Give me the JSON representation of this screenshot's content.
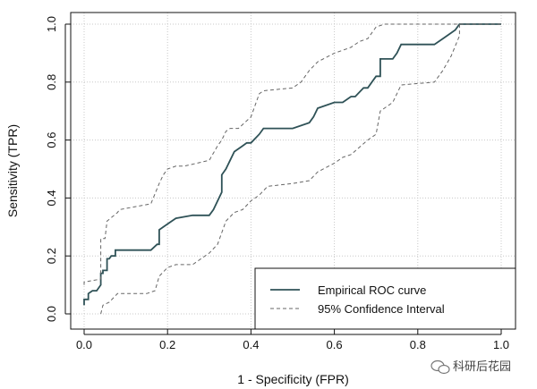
{
  "chart_data": {
    "type": "line",
    "xlabel": "1 - Specificity (FPR)",
    "ylabel": "Sensitivity (TPR)",
    "xlim": [
      0,
      1
    ],
    "ylim": [
      0,
      1
    ],
    "x_ticks": [
      "0.0",
      "0.2",
      "0.4",
      "0.6",
      "0.8",
      "1.0"
    ],
    "y_ticks": [
      "0.0",
      "0.2",
      "0.4",
      "0.6",
      "0.8",
      "1.0"
    ],
    "grid": true,
    "legend_position": "bottom-right",
    "series": [
      {
        "name": "Empirical ROC curve",
        "style": "solid",
        "color": "#2f5257",
        "x": [
          0.0,
          0.0,
          0.01,
          0.01,
          0.02,
          0.03,
          0.04,
          0.04,
          0.045,
          0.045,
          0.055,
          0.055,
          0.06,
          0.065,
          0.075,
          0.075,
          0.16,
          0.175,
          0.18,
          0.18,
          0.19,
          0.21,
          0.22,
          0.26,
          0.3,
          0.31,
          0.33,
          0.33,
          0.34,
          0.35,
          0.36,
          0.38,
          0.39,
          0.4,
          0.42,
          0.43,
          0.5,
          0.54,
          0.55,
          0.56,
          0.6,
          0.62,
          0.64,
          0.65,
          0.67,
          0.68,
          0.69,
          0.7,
          0.71,
          0.71,
          0.74,
          0.75,
          0.76,
          0.8,
          0.84,
          0.86,
          0.88,
          0.89,
          0.9,
          1.0
        ],
        "y": [
          0.03,
          0.05,
          0.05,
          0.07,
          0.08,
          0.08,
          0.1,
          0.14,
          0.14,
          0.15,
          0.15,
          0.19,
          0.19,
          0.2,
          0.2,
          0.22,
          0.22,
          0.24,
          0.24,
          0.29,
          0.3,
          0.32,
          0.33,
          0.34,
          0.34,
          0.36,
          0.42,
          0.48,
          0.5,
          0.53,
          0.56,
          0.58,
          0.59,
          0.59,
          0.62,
          0.64,
          0.64,
          0.66,
          0.68,
          0.71,
          0.73,
          0.73,
          0.75,
          0.75,
          0.78,
          0.78,
          0.8,
          0.82,
          0.82,
          0.88,
          0.88,
          0.9,
          0.93,
          0.93,
          0.93,
          0.95,
          0.97,
          0.98,
          1.0,
          1.0
        ]
      },
      {
        "name": "95% Confidence Interval",
        "style": "dashed",
        "color": "#666666",
        "x": [
          0.0,
          0.0,
          0.04,
          0.04,
          0.05,
          0.055,
          0.08,
          0.085,
          0.16,
          0.18,
          0.19,
          0.2,
          0.22,
          0.24,
          0.3,
          0.32,
          0.33,
          0.34,
          0.35,
          0.37,
          0.4,
          0.42,
          0.43,
          0.5,
          0.52,
          0.54,
          0.56,
          0.6,
          0.62,
          0.64,
          0.66,
          0.68,
          0.69,
          0.7,
          0.72,
          0.74,
          0.8,
          0.84,
          0.86,
          0.88,
          0.9,
          0.9,
          1.0
        ],
        "y": [
          0.1,
          0.11,
          0.12,
          0.26,
          0.26,
          0.32,
          0.35,
          0.36,
          0.38,
          0.45,
          0.48,
          0.5,
          0.51,
          0.51,
          0.53,
          0.58,
          0.6,
          0.63,
          0.64,
          0.64,
          0.68,
          0.76,
          0.77,
          0.78,
          0.8,
          0.84,
          0.87,
          0.9,
          0.91,
          0.92,
          0.94,
          0.95,
          0.97,
          0.99,
          1.0,
          1.0,
          1.0,
          1.0,
          1.0,
          1.0,
          1.0,
          1.0,
          1.0
        ]
      },
      {
        "name": "95% Confidence Interval",
        "style": "dashed",
        "color": "#666666",
        "x": [
          0.04,
          0.045,
          0.06,
          0.08,
          0.12,
          0.15,
          0.17,
          0.18,
          0.2,
          0.22,
          0.26,
          0.3,
          0.32,
          0.34,
          0.36,
          0.38,
          0.4,
          0.42,
          0.44,
          0.5,
          0.54,
          0.56,
          0.6,
          0.62,
          0.64,
          0.68,
          0.7,
          0.71,
          0.72,
          0.74,
          0.75,
          0.76,
          0.84,
          0.86,
          0.88,
          0.9,
          0.9
        ],
        "y": [
          0.0,
          0.03,
          0.04,
          0.07,
          0.07,
          0.07,
          0.08,
          0.13,
          0.16,
          0.17,
          0.17,
          0.21,
          0.24,
          0.32,
          0.35,
          0.36,
          0.39,
          0.41,
          0.44,
          0.45,
          0.46,
          0.49,
          0.52,
          0.54,
          0.55,
          0.6,
          0.62,
          0.7,
          0.71,
          0.73,
          0.76,
          0.79,
          0.8,
          0.84,
          0.89,
          0.96,
          1.0
        ]
      }
    ]
  },
  "watermark": {
    "icon": "wechat-icon",
    "text": "科研后花园"
  }
}
